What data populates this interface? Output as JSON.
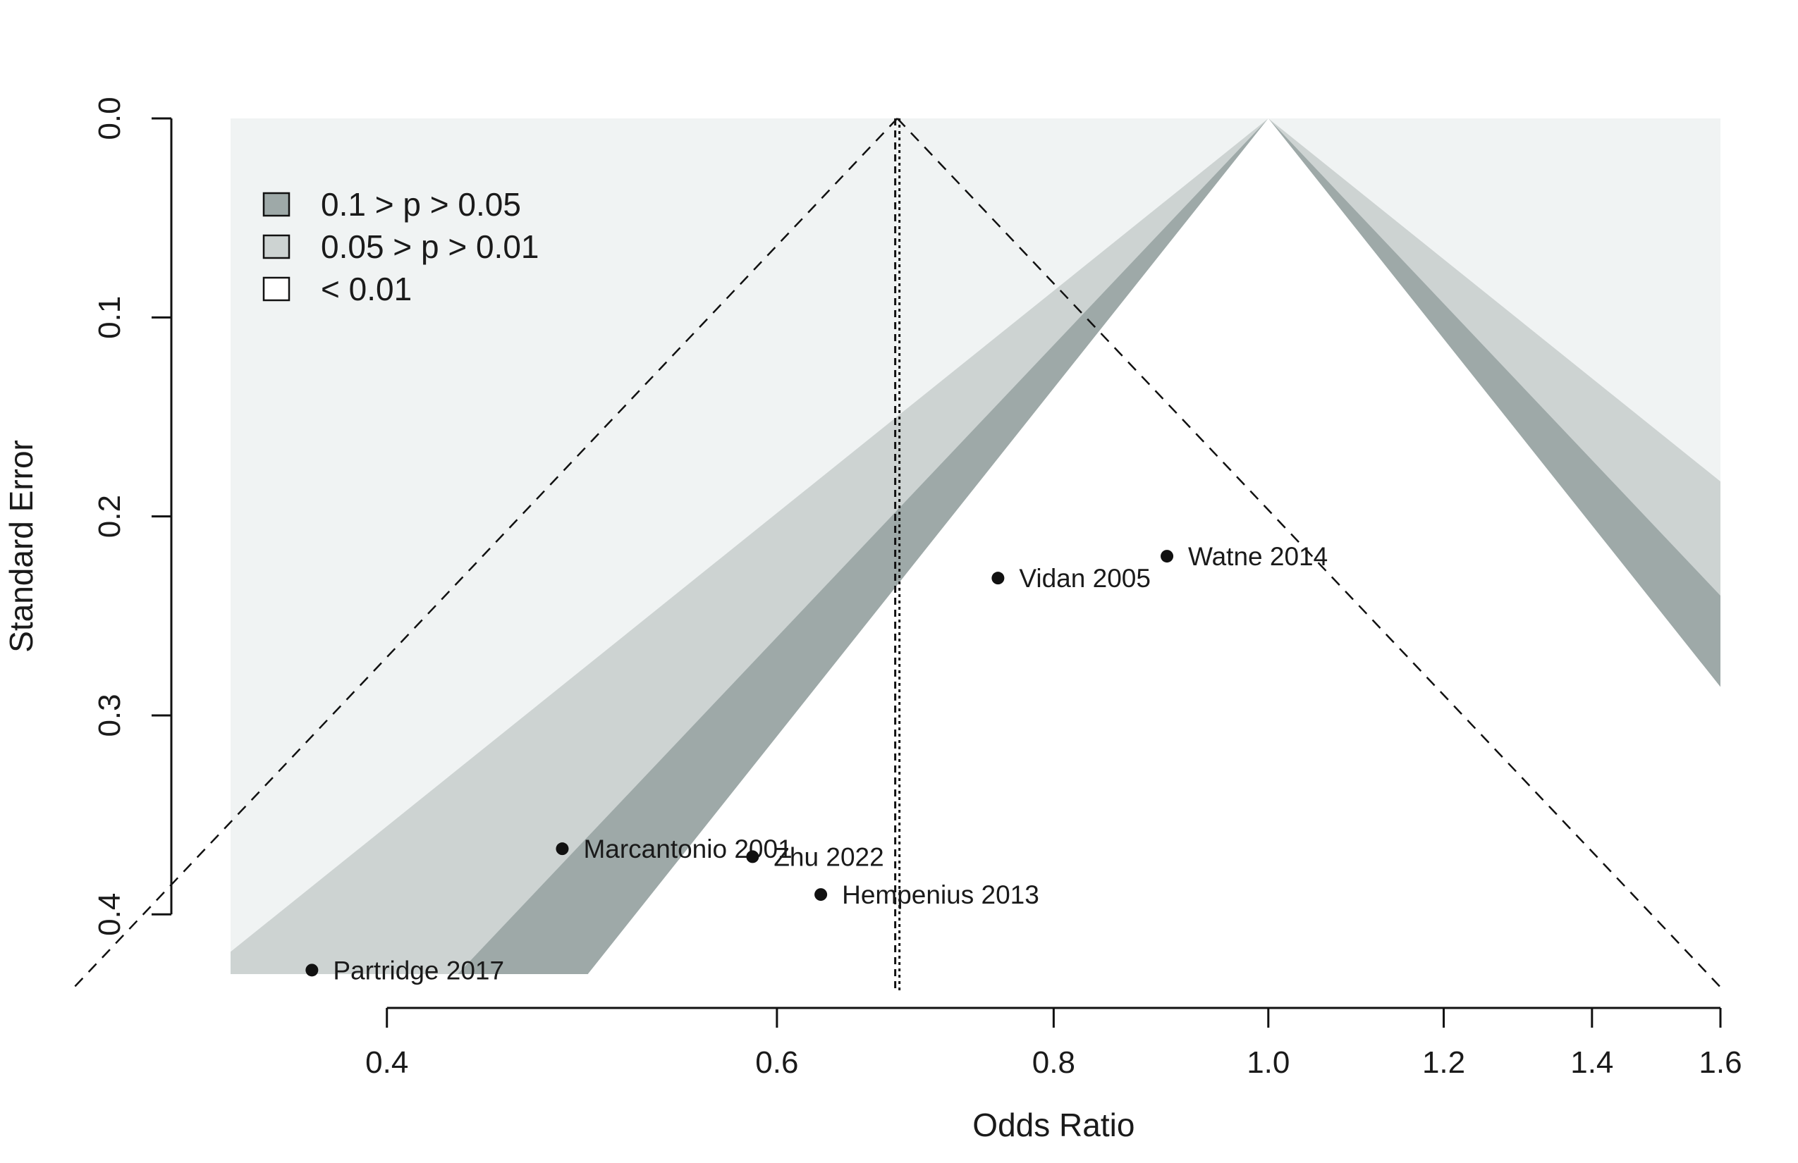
{
  "chart_data": {
    "type": "scatter",
    "subtype": "contour-enhanced funnel plot",
    "xlabel": "Odds Ratio",
    "ylabel": "Standard Error",
    "x_scale": "log",
    "xlim": [
      0.34,
      1.6
    ],
    "ylim": [
      0.43,
      0.0
    ],
    "x_ticks": [
      {
        "value": 0.4,
        "label": "0.4"
      },
      {
        "value": 0.6,
        "label": "0.6"
      },
      {
        "value": 0.8,
        "label": "0.8"
      },
      {
        "value": 1.0,
        "label": "1.0"
      },
      {
        "value": 1.2,
        "label": "1.2"
      },
      {
        "value": 1.4,
        "label": "1.4"
      },
      {
        "value": 1.6,
        "label": "1.6"
      }
    ],
    "y_ticks": [
      {
        "value": 0.0,
        "label": "0.0"
      },
      {
        "value": 0.1,
        "label": "0.1"
      },
      {
        "value": 0.2,
        "label": "0.2"
      },
      {
        "value": 0.3,
        "label": "0.3"
      },
      {
        "value": 0.4,
        "label": "0.4"
      }
    ],
    "contour_center": 1.0,
    "contour_levels": [
      {
        "label": "0.1 > p > 0.05",
        "z_inner": 1.645,
        "z_outer": 1.96,
        "color": "#9ea9a8"
      },
      {
        "label": "0.05 > p > 0.01",
        "z_inner": 1.96,
        "z_outer": 2.576,
        "color": "#cdd3d2"
      },
      {
        "label": "< 0.01",
        "z_inner": 2.576,
        "color": "#f0f3f3"
      }
    ],
    "pooled_estimate": 0.68,
    "points": [
      {
        "label": "Watne 2014",
        "x": 0.9,
        "se": 0.22
      },
      {
        "label": "Vidan 2005",
        "x": 0.755,
        "se": 0.231
      },
      {
        "label": "Marcantonio 2001",
        "x": 0.48,
        "se": 0.367
      },
      {
        "label": "Zhu 2022",
        "x": 0.585,
        "se": 0.371
      },
      {
        "label": "Hempenius 2013",
        "x": 0.628,
        "se": 0.39
      },
      {
        "label": "Partridge 2017",
        "x": 0.37,
        "se": 0.428
      }
    ],
    "legend": {
      "placement": "top-left",
      "items": [
        {
          "label": "0.1 > p > 0.05",
          "color": "#9ea9a8"
        },
        {
          "label": "0.05 > p > 0.01",
          "color": "#cdd3d2"
        },
        {
          "label": "< 0.01",
          "color": "#ffffff"
        }
      ]
    },
    "grid": false
  }
}
